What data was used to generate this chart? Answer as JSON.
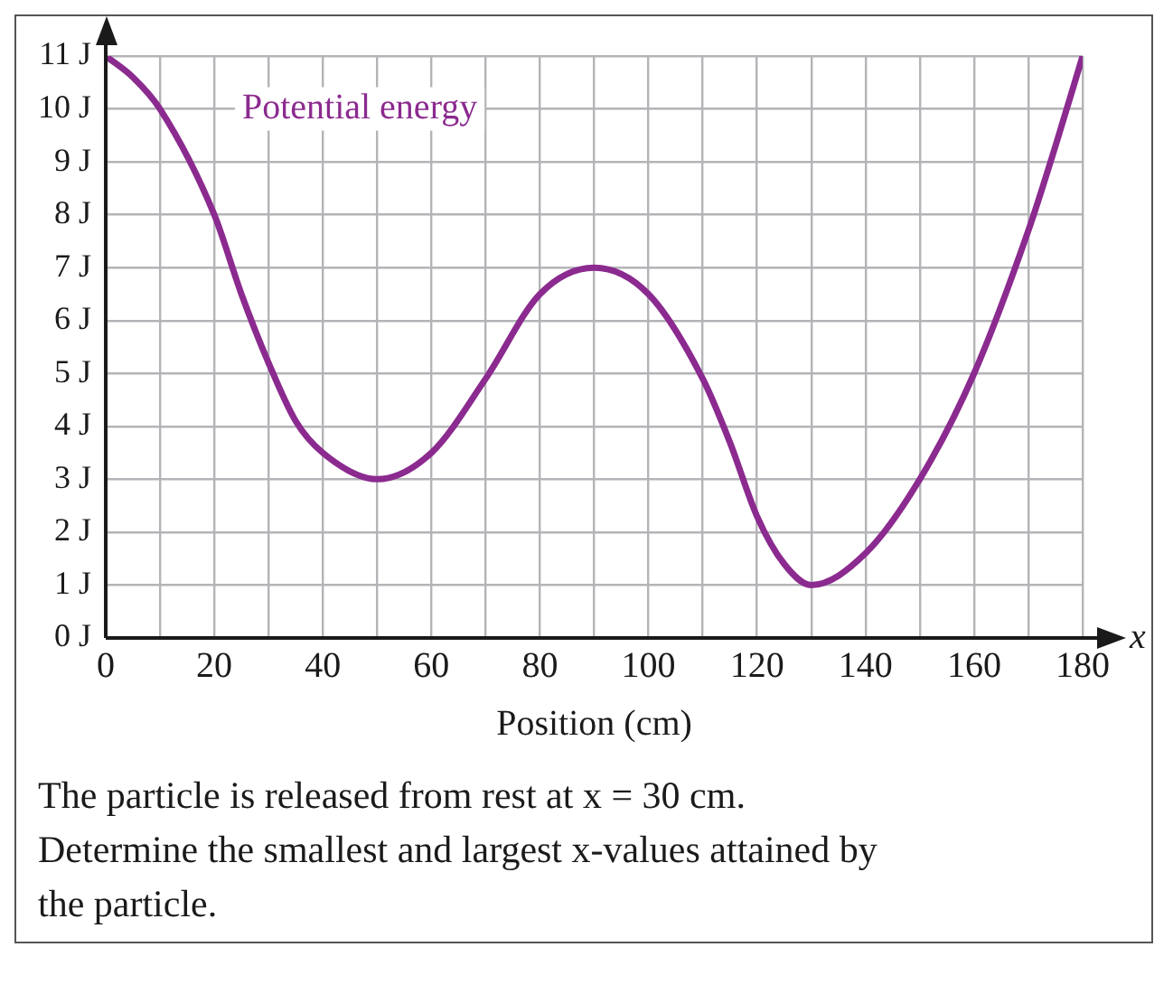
{
  "chart_data": {
    "type": "line",
    "xlabel": "Position (cm)",
    "annotations": [
      "x",
      "The particle is released from rest at x = 30 cm. Determine the smallest and largest x-values attained by the particle."
    ],
    "x": [
      0,
      5,
      10,
      20,
      25,
      30,
      35,
      40,
      50,
      60,
      70,
      80,
      90,
      100,
      110,
      115,
      120,
      125,
      130,
      140,
      150,
      160,
      170,
      175,
      180
    ],
    "series": [
      {
        "name": "Potential energy",
        "color": "#8b2a8f",
        "values": [
          11,
          10.6,
          10,
          8,
          6.5,
          5.2,
          4.1,
          3.5,
          3,
          3.5,
          4.9,
          6.5,
          7,
          6.5,
          4.9,
          3.7,
          2.3,
          1.4,
          1,
          1.6,
          3,
          5,
          7.7,
          9.3,
          11
        ]
      }
    ],
    "xlim": [
      0,
      180
    ],
    "xticks": [
      0,
      {
        "value": 10,
        "label": null
      },
      20,
      {
        "value": 30,
        "label": null
      },
      40,
      {
        "value": 50,
        "label": null
      },
      60,
      {
        "value": 70,
        "label": null
      },
      80,
      {
        "value": 90,
        "label": null
      },
      100,
      {
        "value": 110,
        "label": null
      },
      120,
      {
        "value": 130,
        "label": null
      },
      140,
      {
        "value": 150,
        "label": null
      },
      160,
      {
        "value": 170,
        "label": null
      },
      180
    ],
    "ylim": [
      0,
      11
    ],
    "yticks": [
      {
        "value": 0,
        "label": "0 J"
      },
      {
        "value": 1,
        "label": "1 J"
      },
      {
        "value": 2,
        "label": "2 J"
      },
      {
        "value": 3,
        "label": "3 J"
      },
      {
        "value": 4,
        "label": "4 J"
      },
      {
        "value": 5,
        "label": "5 J"
      },
      {
        "value": 6,
        "label": "6 J"
      },
      {
        "value": 7,
        "label": "7 J"
      },
      {
        "value": 8,
        "label": "8 J"
      },
      {
        "value": 9,
        "label": "9 J"
      },
      {
        "value": 10,
        "label": "10 J"
      },
      {
        "value": 11,
        "label": "11 J"
      }
    ],
    "grid": true,
    "legend": false,
    "marker": "none",
    "line_style": "solid"
  }
}
